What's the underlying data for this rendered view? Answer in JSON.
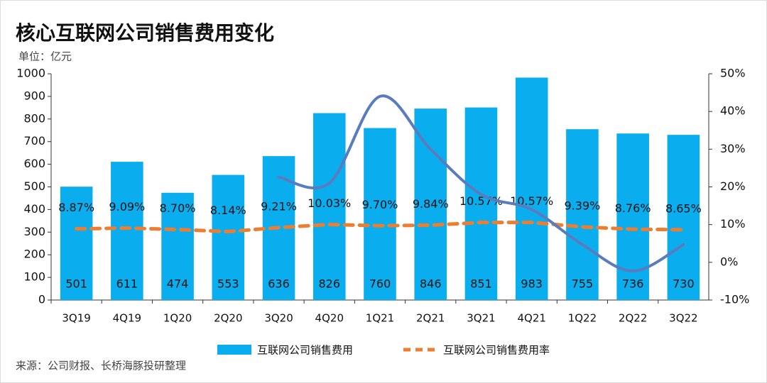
{
  "chart_data": {
    "type": "bar",
    "title": "核心互联网公司销售费用变化",
    "y_axis_label": "单位：亿元",
    "source": "来源：公司财报、长桥海豚投研整理",
    "categories": [
      "3Q19",
      "4Q19",
      "1Q20",
      "2Q20",
      "3Q20",
      "4Q20",
      "1Q21",
      "2Q21",
      "3Q21",
      "4Q21",
      "1Q22",
      "2Q22",
      "3Q22"
    ],
    "series": [
      {
        "name": "互联网公司销售费用",
        "type": "bar",
        "color": "#0aaeee",
        "values": [
          501,
          611,
          474,
          553,
          636,
          826,
          760,
          846,
          851,
          983,
          755,
          736,
          730
        ]
      },
      {
        "name": "互联网公司销售费用率",
        "type": "line",
        "axis": "y2",
        "color": "#ed7d31",
        "dashed": true,
        "values": [
          8.87,
          9.09,
          8.7,
          8.14,
          9.21,
          10.03,
          9.7,
          9.84,
          10.57,
          10.57,
          9.39,
          8.76,
          8.65
        ],
        "value_labels": [
          "8.87%",
          "9.09%",
          "8.70%",
          "8.14%",
          "9.21%",
          "10.03%",
          "9.70%",
          "9.84%",
          "10.57%",
          "10.57%",
          "9.39%",
          "8.76%",
          "8.65%"
        ]
      },
      {
        "type": "line",
        "axis": "y2",
        "color": "#5a7cbf",
        "smooth": true,
        "values": [
          null,
          null,
          null,
          null,
          22.6,
          21,
          44,
          30,
          18,
          14,
          4.7,
          -2.3,
          4.7
        ]
      }
    ],
    "ylim": [
      0,
      1000
    ],
    "yticks": [
      0,
      100,
      200,
      300,
      400,
      500,
      600,
      700,
      800,
      900,
      1000
    ],
    "y2lim": [
      -10,
      50
    ],
    "y2ticks": [
      {
        "value": -10,
        "label": "-10%"
      },
      {
        "value": 0,
        "label": "0%"
      },
      {
        "value": 10,
        "label": "10%"
      },
      {
        "value": 20,
        "label": "20%"
      },
      {
        "value": 30,
        "label": "30%"
      },
      {
        "value": 40,
        "label": "40%"
      },
      {
        "value": 50,
        "label": "50%"
      }
    ],
    "grid": false,
    "legend": "bottom"
  }
}
